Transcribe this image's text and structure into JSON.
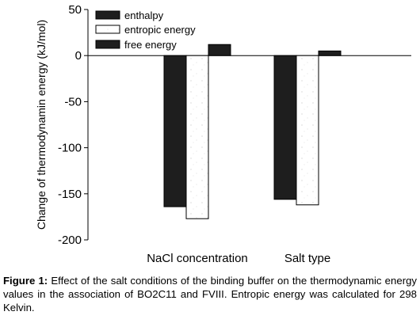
{
  "chart_data": {
    "type": "bar",
    "ylabel": "Change of thermodynamin energy (kJ/mol)",
    "ylim": [
      -200,
      50
    ],
    "yticks": [
      50,
      0,
      -50,
      -100,
      -150,
      -200
    ],
    "categories": [
      "NaCl concentration",
      "Salt type"
    ],
    "series": [
      {
        "name": "enthalpy",
        "values": [
          -164,
          -156
        ],
        "style": "black"
      },
      {
        "name": "entropic energy",
        "values": [
          -177,
          -162
        ],
        "style": "white-speckled"
      },
      {
        "name": "free energy",
        "values": [
          12,
          5
        ],
        "style": "black"
      }
    ],
    "legend_position": "top-left",
    "grid": false
  },
  "caption": {
    "label": "Figure 1:",
    "text": "Effect of the salt conditions of the binding buffer on the thermodynamic energy values in the association of BO2C11 and FVIII. Entropic energy was calculated for 298 Kelvin."
  },
  "colors": {
    "dark_bar": "#1e1e1e",
    "light_bar": "#ffffff",
    "axis": "#000000"
  }
}
